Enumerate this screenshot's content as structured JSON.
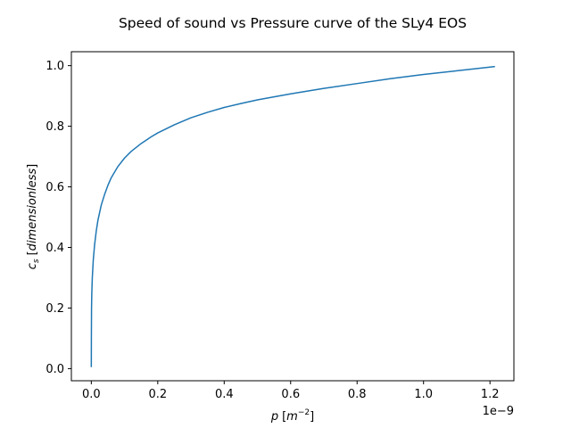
{
  "chart_data": {
    "type": "line",
    "title": "Speed of sound vs Pressure curve of the SLy4 EOS",
    "xlabel": {
      "symbol": "p",
      "unit_open": "[",
      "unit_base": "m",
      "unit_exp": "−2",
      "unit_close": "]"
    },
    "ylabel": {
      "symbol": "c",
      "subscript": "s",
      "unit_open": "[",
      "unit_text": "dimensionless",
      "unit_close": "]"
    },
    "x_offset_label": "1e−9",
    "xlim": [
      -0.06,
      1.272
    ],
    "ylim": [
      -0.04,
      1.046
    ],
    "x_ticks": [
      0.0,
      0.2,
      0.4,
      0.6,
      0.8,
      1.0,
      1.2
    ],
    "x_tick_labels": [
      "0.0",
      "0.2",
      "0.4",
      "0.6",
      "0.8",
      "1.0",
      "1.2"
    ],
    "y_ticks": [
      0.0,
      0.2,
      0.4,
      0.6,
      0.8,
      1.0
    ],
    "y_tick_labels": [
      "0.0",
      "0.2",
      "0.4",
      "0.6",
      "0.8",
      "1.0"
    ],
    "series": [
      {
        "color": "#1f77b4",
        "x": [
          0.0,
          0.0002,
          0.0007,
          0.0015,
          0.003,
          0.006,
          0.01,
          0.015,
          0.02,
          0.03,
          0.04,
          0.05,
          0.06,
          0.08,
          0.1,
          0.12,
          0.15,
          0.18,
          0.2,
          0.25,
          0.3,
          0.35,
          0.4,
          0.45,
          0.5,
          0.6,
          0.7,
          0.8,
          0.9,
          1.0,
          1.1,
          1.215
        ],
        "y": [
          0.005,
          0.1,
          0.2,
          0.25,
          0.3,
          0.36,
          0.41,
          0.455,
          0.49,
          0.54,
          0.575,
          0.605,
          0.63,
          0.667,
          0.695,
          0.717,
          0.743,
          0.765,
          0.778,
          0.805,
          0.828,
          0.846,
          0.862,
          0.875,
          0.887,
          0.907,
          0.925,
          0.941,
          0.957,
          0.971,
          0.983,
          0.997
        ]
      }
    ]
  }
}
